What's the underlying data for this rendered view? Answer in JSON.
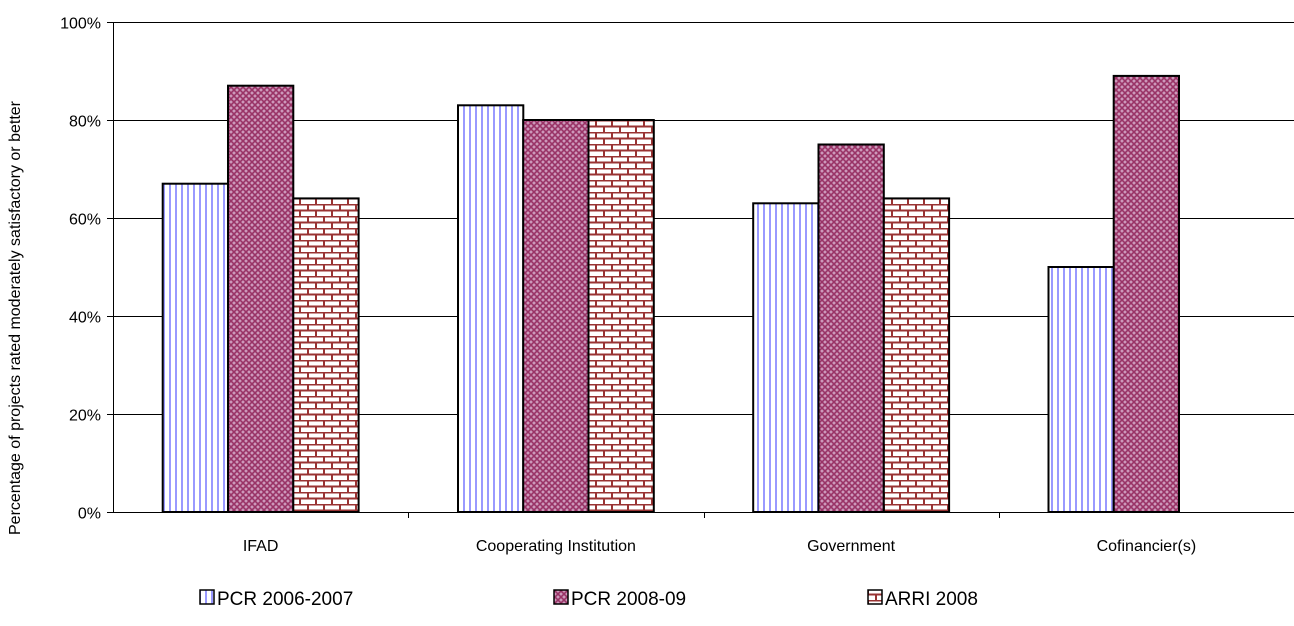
{
  "chart_data": {
    "type": "bar",
    "title": "",
    "xlabel": "",
    "ylabel": "Percentage of projects rated moderately satisfactory or better",
    "ylim": [
      0,
      100
    ],
    "y_ticks": [
      0,
      20,
      40,
      60,
      80,
      100
    ],
    "y_tick_suffix": "%",
    "grid": true,
    "legend_position": "bottom",
    "categories": [
      "IFAD",
      "Cooperating Institution",
      "Government",
      "Cofinancier(s)"
    ],
    "series": [
      {
        "name": "PCR 2006-2007",
        "pattern": "vertical-lines",
        "color": "#9999ff",
        "values": [
          67,
          83,
          63,
          50
        ]
      },
      {
        "name": "PCR 2008-09",
        "pattern": "crosshatch",
        "color": "#993366",
        "values": [
          87,
          80,
          75,
          89
        ]
      },
      {
        "name": "ARRI 2008",
        "pattern": "brick",
        "color": "#993333",
        "values": [
          64,
          80,
          64,
          null
        ]
      }
    ]
  }
}
